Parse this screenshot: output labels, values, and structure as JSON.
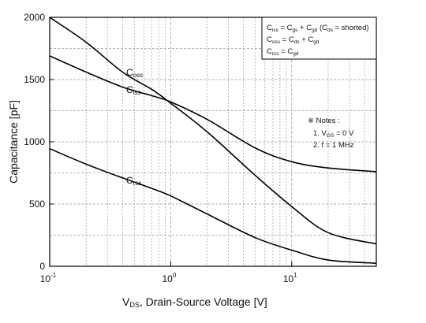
{
  "chart_data": {
    "type": "line",
    "xscale": "log",
    "xlim": [
      0.1,
      50
    ],
    "ylim": [
      0,
      2000
    ],
    "grid": true,
    "xlabel": {
      "main": "V",
      "sub": "DS",
      "rest": ", Drain-Source Voltage [V]"
    },
    "ylabel": "Capacitance [pF]",
    "y_ticks": [
      "0",
      "500",
      "1000",
      "1500",
      "2000"
    ],
    "x_ticks": [
      {
        "base": "10",
        "exp": "-1"
      },
      {
        "base": "10",
        "exp": "0"
      },
      {
        "base": "10",
        "exp": "1"
      }
    ],
    "series": [
      {
        "name": "Coss",
        "label_main": "C",
        "label_sub": "oss",
        "points": [
          [
            0.1,
            2000
          ],
          [
            0.2,
            1800
          ],
          [
            0.4,
            1560
          ],
          [
            0.7,
            1420
          ],
          [
            1.0,
            1310
          ],
          [
            2.0,
            1080
          ],
          [
            5.0,
            730
          ],
          [
            10.0,
            480
          ],
          [
            20.0,
            270
          ],
          [
            50.0,
            180
          ]
        ]
      },
      {
        "name": "Ciss",
        "label_main": "C",
        "label_sub": "iss",
        "points": [
          [
            0.1,
            1690
          ],
          [
            0.2,
            1560
          ],
          [
            0.4,
            1440
          ],
          [
            0.7,
            1370
          ],
          [
            1.0,
            1320
          ],
          [
            2.0,
            1180
          ],
          [
            5.0,
            950
          ],
          [
            10.0,
            840
          ],
          [
            20.0,
            790
          ],
          [
            50.0,
            760
          ]
        ]
      },
      {
        "name": "Crss",
        "label_main": "C",
        "label_sub": "rss",
        "points": [
          [
            0.1,
            945
          ],
          [
            0.2,
            820
          ],
          [
            0.4,
            710
          ],
          [
            0.7,
            625
          ],
          [
            1.0,
            565
          ],
          [
            2.0,
            420
          ],
          [
            5.0,
            230
          ],
          [
            10.0,
            130
          ],
          [
            20.0,
            50
          ],
          [
            50.0,
            25
          ]
        ]
      }
    ],
    "legend_box": {
      "lines": [
        [
          {
            "t": "C"
          },
          {
            "t": "iss",
            "sub": true
          },
          {
            "t": " = C"
          },
          {
            "t": "gs",
            "sub": true
          },
          {
            "t": " + C"
          },
          {
            "t": "gd",
            "sub": true
          },
          {
            "t": " (C"
          },
          {
            "t": "ds",
            "sub": true
          },
          {
            "t": " = shorted)"
          }
        ],
        [
          {
            "t": "C"
          },
          {
            "t": "oss",
            "sub": true
          },
          {
            "t": " = C"
          },
          {
            "t": "ds",
            "sub": true
          },
          {
            "t": " + C"
          },
          {
            "t": "gd",
            "sub": true
          }
        ],
        [
          {
            "t": "C"
          },
          {
            "t": "rss",
            "sub": true
          },
          {
            "t": " = C"
          },
          {
            "t": "gd",
            "sub": true
          }
        ]
      ]
    },
    "notes": {
      "title": "※ Notes :",
      "lines": [
        [
          {
            "t": "1. V"
          },
          {
            "t": "GS",
            "sub": true
          },
          {
            "t": " = 0 V"
          }
        ],
        [
          {
            "t": "2. f = 1 MHz"
          }
        ]
      ]
    },
    "colors": {
      "line": "#000000",
      "grid": "#9a9a9a",
      "axis": "#000000"
    }
  }
}
